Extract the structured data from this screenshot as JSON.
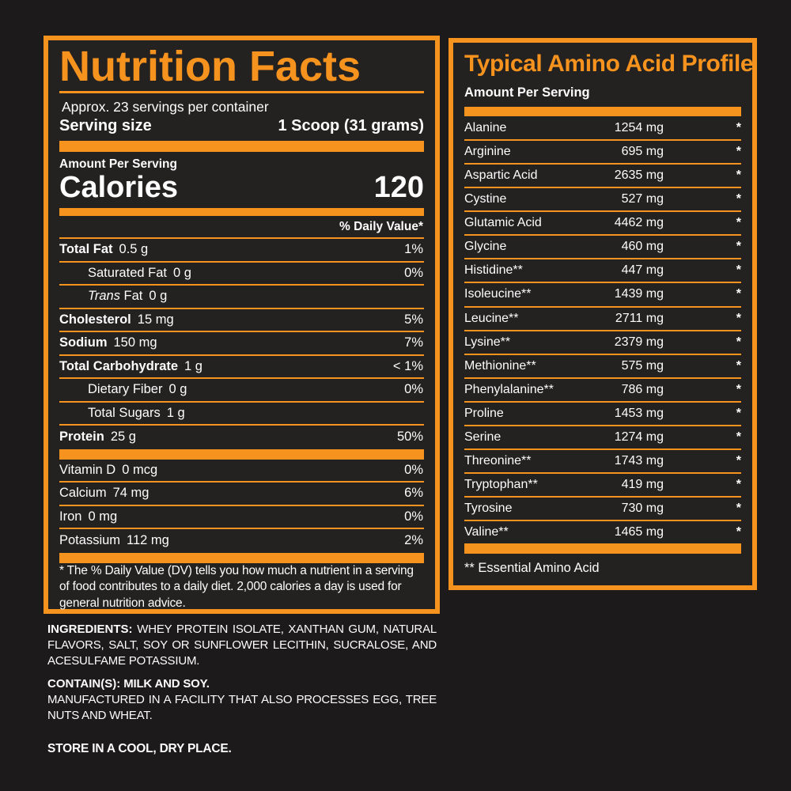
{
  "colors": {
    "accent": "#F6921E",
    "background": "#1C1A1A",
    "panel_background": "#242121",
    "text": "#FFFFFF"
  },
  "nutrition": {
    "title": "Nutrition Facts",
    "servings_per_container": "Approx. 23 servings per container",
    "serving_size": {
      "label": "Serving size",
      "value": "1 Scoop (31 grams)"
    },
    "amount_per_serving": "Amount Per Serving",
    "calories": {
      "label": "Calories",
      "value": "120"
    },
    "daily_value_header": "% Daily Value*",
    "main_rows": [
      {
        "label": "Total Fat",
        "amount": "0.5 g",
        "dv": "1%",
        "bold": true
      },
      {
        "label": "Saturated Fat",
        "amount": "0 g",
        "dv": "0%",
        "indent": true
      },
      {
        "italic": "Trans",
        "label": "Fat",
        "amount": "0 g",
        "dv": "",
        "indent": true
      },
      {
        "label": "Cholesterol",
        "amount": "15 mg",
        "dv": "5%",
        "bold": true
      },
      {
        "label": "Sodium",
        "amount": "150 mg",
        "dv": "7%",
        "bold": true
      },
      {
        "label": "Total Carbohydrate",
        "amount": "1 g",
        "dv": "< 1%",
        "bold": true
      },
      {
        "label": "Dietary Fiber",
        "amount": "0 g",
        "dv": "0%",
        "indent": true
      },
      {
        "label": "Total Sugars",
        "amount": "1 g",
        "dv": "",
        "indent": true
      },
      {
        "label": "Protein",
        "amount": "25 g",
        "dv": "50%",
        "bold": true
      }
    ],
    "micro_rows": [
      {
        "label": "Vitamin D",
        "amount": "0 mcg",
        "dv": "0%"
      },
      {
        "label": "Calcium",
        "amount": "74 mg",
        "dv": "6%"
      },
      {
        "label": "Iron",
        "amount": "0 mg",
        "dv": "0%"
      },
      {
        "label": "Potassium",
        "amount": "112 mg",
        "dv": "2%"
      }
    ],
    "footnote": "* The % Daily Value (DV) tells you how much a nutrient in a serving of food contributes to a daily diet. 2,000 calories a day is used for general nutrition advice."
  },
  "amino": {
    "title": "Typical Amino Acid Profile",
    "subtitle": "Amount Per Serving",
    "rows": [
      {
        "name": "Alanine",
        "amount": "1254 mg",
        "note": "*"
      },
      {
        "name": "Arginine",
        "amount": "695 mg",
        "note": "*"
      },
      {
        "name": "Aspartic Acid",
        "amount": "2635 mg",
        "note": "*"
      },
      {
        "name": "Cystine",
        "amount": "527 mg",
        "note": "*"
      },
      {
        "name": "Glutamic Acid",
        "amount": "4462 mg",
        "note": "*"
      },
      {
        "name": "Glycine",
        "amount": "460 mg",
        "note": "*"
      },
      {
        "name": "Histidine**",
        "amount": "447 mg",
        "note": "*"
      },
      {
        "name": "Isoleucine**",
        "amount": "1439 mg",
        "note": "*"
      },
      {
        "name": "Leucine**",
        "amount": "2711 mg",
        "note": "*"
      },
      {
        "name": "Lysine**",
        "amount": "2379 mg",
        "note": "*"
      },
      {
        "name": "Methionine**",
        "amount": "575 mg",
        "note": "*"
      },
      {
        "name": "Phenylalanine**",
        "amount": "786 mg",
        "note": "*"
      },
      {
        "name": "Proline",
        "amount": "1453 mg",
        "note": "*"
      },
      {
        "name": "Serine",
        "amount": "1274 mg",
        "note": "*"
      },
      {
        "name": "Threonine**",
        "amount": "1743 mg",
        "note": "*"
      },
      {
        "name": "Tryptophan**",
        "amount": "419 mg",
        "note": "*"
      },
      {
        "name": "Tyrosine",
        "amount": "730 mg",
        "note": "*"
      },
      {
        "name": "Valine**",
        "amount": "1465 mg",
        "note": "*"
      }
    ],
    "footnote": "** Essential Amino Acid"
  },
  "bottom": {
    "ingredients_label": "INGREDIENTS:",
    "ingredients_text": "WHEY PROTEIN ISOLATE, XANTHAN GUM, NATURAL FLAVORS, SALT, SOY OR SUNFLOWER LECITHIN, SUCRALOSE, AND ACESULFAME POTASSIUM.",
    "contains_label": "CONTAIN(S):",
    "contains_text": "MILK AND SOY.",
    "manufactured_text": "MANUFACTURED IN A FACILITY THAT ALSO PROCESSES EGG, TREE NUTS AND WHEAT.",
    "storage_text": "STORE IN A COOL, DRY PLACE."
  }
}
